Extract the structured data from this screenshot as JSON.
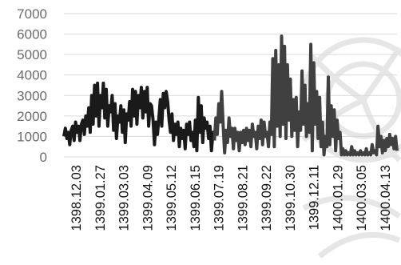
{
  "chart_data": {
    "type": "line",
    "title": "",
    "xlabel": "",
    "ylabel": "",
    "ylim": [
      0,
      7000
    ],
    "yticks": [
      0,
      1000,
      2000,
      3000,
      4000,
      5000,
      6000,
      7000
    ],
    "ytick_labels": [
      "0",
      "1000",
      "2000",
      "3000",
      "4000",
      "5000",
      "6000",
      "7000"
    ],
    "xtick_labels": [
      "1398.12.03",
      "1399.01.27",
      "1399.03.03",
      "1399.04.09",
      "1399.05.12",
      "1399.06.15",
      "1399.07.19",
      "1399.08.21",
      "1399.09.22",
      "1399.10.30",
      "1399.12.11",
      "1400.01.29",
      "1400.03.05",
      "1400.04.13"
    ],
    "grid": true,
    "legend": "none",
    "colors": {
      "line_dark": "#1a1a1a",
      "line_mid": "#404040",
      "grid": "#d9d9d9",
      "axis_text": "#6b6b6b",
      "date_text": "#111111"
    },
    "series": [
      {
        "values": [
          1000,
          1400,
          900,
          1200,
          600,
          1300,
          1500,
          800,
          1700,
          1200,
          1500,
          800,
          1600,
          1800,
          1100,
          2000,
          1500,
          2400,
          1200,
          3000,
          1600,
          3500,
          2000,
          3600,
          1500,
          3000,
          2400,
          3600,
          1900,
          3300,
          1500,
          2500,
          2200,
          3000,
          1300,
          2600,
          900,
          2000,
          1700,
          2500,
          1200,
          2300,
          700,
          2100,
          1800,
          2700,
          1500,
          3300,
          2000,
          3200,
          1600,
          3000,
          2400,
          3400,
          1900,
          3200,
          2200,
          3400,
          1500,
          2600,
          2500,
          1800,
          600,
          1700,
          1100,
          1900,
          2800,
          1500,
          3100,
          2400,
          3200,
          2700,
          1800,
          1200,
          2100,
          800,
          1600,
          1100,
          1700,
          500,
          1400,
          900,
          1300,
          400,
          1600,
          1100,
          1700,
          800,
          1200,
          500,
          1800,
          300,
          2900,
          1200,
          2500,
          700,
          1900,
          1400,
          1700,
          900,
          1500,
          300,
          1200,
          800,
          1900,
          1100,
          2600,
          1700,
          3200,
          1500,
          200,
          1300,
          700,
          1900,
          1000,
          1400,
          400,
          1400,
          800,
          1200,
          300,
          1200,
          700,
          1300,
          600,
          1400,
          800,
          1300,
          500,
          1600,
          1000,
          1200,
          400,
          1500,
          900,
          1800,
          600,
          1700,
          1000,
          1200,
          500,
          1700,
          1100,
          4800,
          500,
          5200,
          1500,
          4500,
          1000,
          5900,
          1600,
          5400,
          900,
          4500,
          1800,
          3800,
          1000,
          2800,
          1300,
          2900,
          500,
          2200,
          1300,
          4200,
          1600,
          3500,
          1000,
          2600,
          1200,
          5500,
          300,
          4600,
          1600,
          3200,
          900,
          2900,
          500,
          1700,
          100,
          1000,
          500,
          3900,
          600,
          2500,
          1000,
          2300,
          300,
          1800,
          900,
          1200,
          100,
          400,
          100,
          300,
          100,
          200,
          100,
          500,
          100,
          300,
          100,
          200,
          100,
          300,
          100,
          200,
          100,
          400,
          100,
          200,
          100,
          600,
          200,
          300,
          100,
          1500,
          500,
          1000,
          200,
          800,
          300,
          900,
          500,
          1100,
          600,
          900,
          400,
          1000,
          300
        ]
      }
    ]
  }
}
